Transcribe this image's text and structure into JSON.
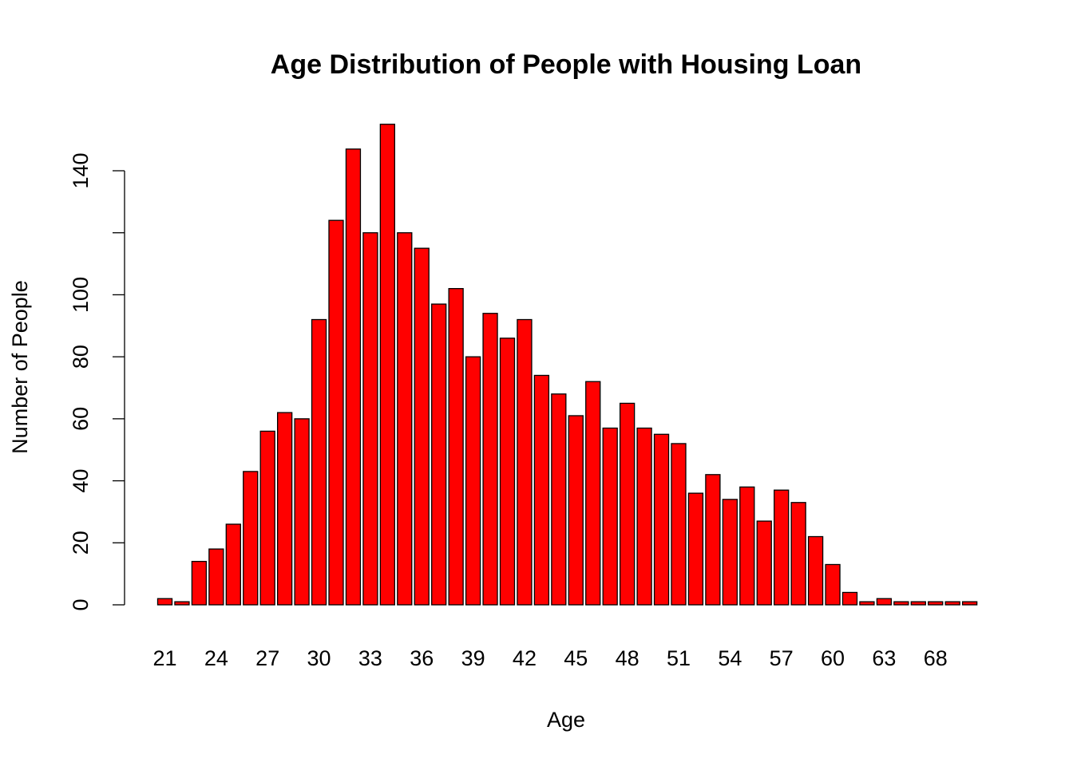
{
  "chart_data": {
    "type": "bar",
    "title": "Age Distribution of People with Housing Loan",
    "xlabel": "Age",
    "ylabel": "Number of People",
    "ylim": [
      0,
      150
    ],
    "y_ticks": [
      0,
      20,
      40,
      60,
      80,
      100,
      120,
      140
    ],
    "y_tick_labels": [
      "0",
      "20",
      "40",
      "60",
      "80",
      "100",
      "",
      "140"
    ],
    "x_tick_labels": [
      {
        "index": 0,
        "label": "21"
      },
      {
        "index": 3,
        "label": "24"
      },
      {
        "index": 6,
        "label": "27"
      },
      {
        "index": 9,
        "label": "30"
      },
      {
        "index": 12,
        "label": "33"
      },
      {
        "index": 15,
        "label": "36"
      },
      {
        "index": 18,
        "label": "39"
      },
      {
        "index": 21,
        "label": "42"
      },
      {
        "index": 24,
        "label": "45"
      },
      {
        "index": 27,
        "label": "48"
      },
      {
        "index": 30,
        "label": "51"
      },
      {
        "index": 33,
        "label": "54"
      },
      {
        "index": 36,
        "label": "57"
      },
      {
        "index": 39,
        "label": "60"
      },
      {
        "index": 42,
        "label": "63"
      },
      {
        "index": 45,
        "label": "68"
      }
    ],
    "categories": [
      "21",
      "22",
      "23",
      "24",
      "25",
      "26",
      "27",
      "28",
      "29",
      "30",
      "31",
      "32",
      "33",
      "34",
      "35",
      "36",
      "37",
      "38",
      "39",
      "40",
      "41",
      "42",
      "43",
      "44",
      "45",
      "46",
      "47",
      "48",
      "49",
      "50",
      "51",
      "52",
      "53",
      "54",
      "55",
      "56",
      "57",
      "58",
      "59",
      "60",
      "61",
      "62",
      "63",
      "64",
      "67",
      "68",
      "70",
      "71"
    ],
    "values": [
      2,
      1,
      14,
      18,
      26,
      43,
      56,
      62,
      60,
      92,
      124,
      147,
      120,
      155,
      120,
      115,
      97,
      102,
      80,
      94,
      86,
      92,
      74,
      68,
      61,
      72,
      57,
      65,
      57,
      55,
      52,
      36,
      42,
      34,
      38,
      27,
      37,
      33,
      22,
      13,
      4,
      1,
      2,
      1,
      1,
      1,
      1,
      1
    ],
    "bar_color": "#ff0000",
    "bar_border": "#000000",
    "grid": false,
    "legend": "none"
  }
}
